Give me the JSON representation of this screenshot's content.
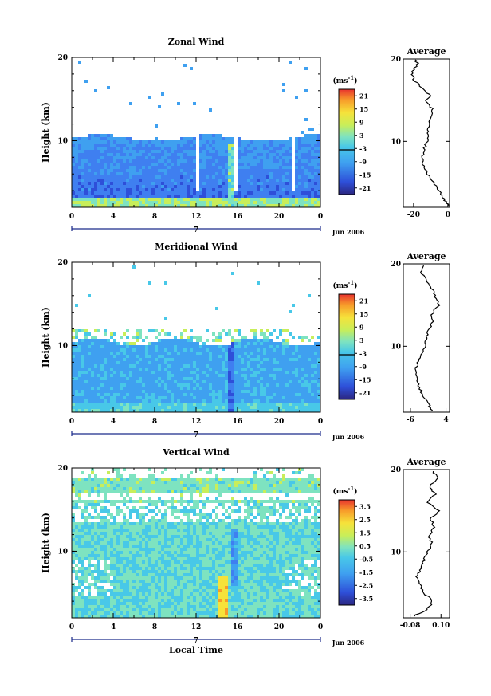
{
  "chart_data": [
    {
      "type": "heatmap",
      "title": "Zonal Wind",
      "ylabel": "Height (km)",
      "xlabel": "",
      "xticks": [
        "0",
        "4",
        "8",
        "12",
        "16",
        "20",
        "0"
      ],
      "xlim": [
        0,
        24
      ],
      "yticks": [
        "10",
        "20"
      ],
      "ylim": [
        2,
        20
      ],
      "day_label": "7",
      "date_label": "Jun 2006",
      "colorbar": {
        "unit": "(ms",
        "unit_exp": "-1",
        "unit_close": ")",
        "ticks": [
          "21",
          "15",
          "9",
          "3",
          "-3",
          "-9",
          "-15",
          "-21"
        ],
        "range": [
          -24,
          24
        ]
      },
      "average": {
        "title": "Average",
        "xlabel": "(ms",
        "xlabel_exp": "-1",
        "xlabel_close": ")",
        "xticks": [
          "-20",
          "0"
        ],
        "xtick_values": [
          -20,
          0
        ],
        "xlim": [
          -26,
          1
        ],
        "yticks": [
          "10",
          "20"
        ],
        "ylim": [
          2,
          20
        ],
        "height": [
          2.2,
          3,
          4,
          5,
          6,
          7,
          8,
          9,
          10,
          11,
          12,
          13,
          14,
          14.8,
          15.5,
          16.5,
          17.5,
          18.5,
          19.5,
          20
        ],
        "value": [
          0,
          -2,
          -5,
          -8,
          -12,
          -14,
          -15,
          -14,
          -12,
          -12,
          -11,
          -10,
          -9,
          -13,
          -10,
          -15,
          -20,
          -21,
          -17,
          -20
        ]
      }
    },
    {
      "type": "heatmap",
      "title": "Meridional Wind",
      "ylabel": "Height (km)",
      "xlabel": "",
      "xticks": [
        "0",
        "4",
        "8",
        "12",
        "16",
        "20",
        "0"
      ],
      "xlim": [
        0,
        24
      ],
      "yticks": [
        "10",
        "20"
      ],
      "ylim": [
        2,
        20
      ],
      "day_label": "7",
      "date_label": "Jun 2006",
      "colorbar": {
        "unit": "(ms",
        "unit_exp": "-1",
        "unit_close": ")",
        "ticks": [
          "21",
          "15",
          "9",
          "3",
          "-3",
          "-9",
          "-15",
          "-21"
        ],
        "range": [
          -24,
          24
        ]
      },
      "average": {
        "title": "Average",
        "xlabel": "(ms",
        "xlabel_exp": "-1",
        "xlabel_close": ")",
        "xticks": [
          "-6",
          "4"
        ],
        "xtick_values": [
          -6,
          4
        ],
        "xlim": [
          -8,
          5
        ],
        "yticks": [
          "10",
          "20"
        ],
        "ylim": [
          2,
          20
        ],
        "height": [
          2.2,
          3,
          4,
          5,
          6,
          7,
          8,
          9,
          10,
          11,
          12,
          13,
          14,
          15,
          16,
          17,
          18,
          19,
          20
        ],
        "value": [
          0,
          -1,
          -2.5,
          -3.5,
          -4,
          -4.5,
          -4,
          -3,
          -2,
          -1.5,
          -1,
          0.5,
          0,
          2,
          1,
          0,
          -1.5,
          -3,
          -2
        ]
      }
    },
    {
      "type": "heatmap",
      "title": "Vertical Wind",
      "ylabel": "Height (km)",
      "xlabel": "Local Time",
      "xticks": [
        "0",
        "4",
        "8",
        "12",
        "16",
        "20",
        "0"
      ],
      "xlim": [
        0,
        24
      ],
      "yticks": [
        "10",
        "20"
      ],
      "ylim": [
        2,
        20
      ],
      "day_label": "7",
      "date_label": "Jun 2006",
      "colorbar": {
        "unit": "(ms",
        "unit_exp": "-1",
        "unit_close": ")",
        "ticks": [
          "3.5",
          "2.5",
          "1.5",
          "0.5",
          "-0.5",
          "-1.5",
          "-2.5",
          "-3.5"
        ],
        "range": [
          -4,
          4
        ]
      },
      "average": {
        "title": "Average",
        "xlabel": "(ms",
        "xlabel_exp": "-1",
        "xlabel_close": ")",
        "xticks": [
          "-0.08",
          "0.10"
        ],
        "xtick_values": [
          -0.08,
          0.1
        ],
        "xlim": [
          -0.12,
          0.15
        ],
        "yticks": [
          "10",
          "20"
        ],
        "ylim": [
          2,
          20
        ],
        "height": [
          2.2,
          3,
          4,
          5,
          6,
          7,
          8,
          9,
          10,
          11,
          12,
          13,
          14,
          15,
          16,
          17,
          18,
          19,
          20
        ],
        "value": [
          -0.06,
          0.02,
          0.05,
          0.0,
          -0.02,
          -0.04,
          -0.02,
          0.0,
          0.02,
          0.05,
          0.03,
          0.06,
          0.04,
          0.09,
          0.02,
          0.07,
          0.03,
          0.08,
          0.05
        ]
      }
    }
  ]
}
